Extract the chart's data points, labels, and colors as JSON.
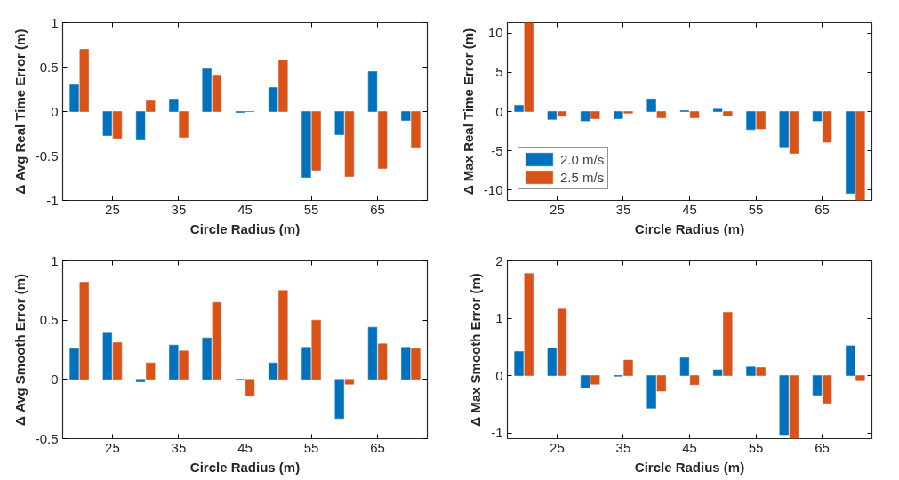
{
  "chart_data": [
    {
      "type": "bar",
      "ylabel": "Δ Avg Real Time Error (m)",
      "xlabel": "Circle Radius (m)",
      "x": [
        20,
        25,
        30,
        35,
        40,
        45,
        50,
        55,
        60,
        65,
        70
      ],
      "xlim": [
        17.5,
        72.5
      ],
      "xticks": [
        25,
        35,
        45,
        55,
        65
      ],
      "ylim": [
        -1,
        1
      ],
      "yticks": [
        -1,
        -0.5,
        0,
        0.5,
        1
      ],
      "grid": false,
      "legend": false,
      "series": [
        {
          "color": "#0072bd",
          "values": [
            0.3,
            -0.27,
            -0.31,
            0.14,
            0.48,
            -0.01,
            0.27,
            -0.74,
            -0.26,
            0.45,
            -0.1
          ]
        },
        {
          "color": "#d95319",
          "values": [
            0.7,
            -0.3,
            0.12,
            -0.29,
            0.41,
            0.0,
            0.58,
            -0.66,
            -0.73,
            -0.64,
            -0.4
          ]
        }
      ]
    },
    {
      "type": "bar",
      "ylabel": "Δ Max Real Time Error (m)",
      "xlabel": "Circle Radius (m)",
      "x": [
        20,
        25,
        30,
        35,
        40,
        45,
        50,
        55,
        60,
        65,
        70
      ],
      "xlim": [
        17.5,
        72.5
      ],
      "xticks": [
        25,
        35,
        45,
        55,
        65
      ],
      "ylim": [
        -11.3,
        11.3
      ],
      "yticks": [
        -10,
        -5,
        0,
        5,
        10
      ],
      "grid": false,
      "legend": "bottom left",
      "series": [
        {
          "name": "2.0 m/s",
          "color": "#0072bd",
          "values": [
            0.8,
            -1.0,
            -1.2,
            -0.9,
            1.6,
            0.1,
            0.3,
            -2.3,
            -4.5,
            -1.2,
            -10.4
          ]
        },
        {
          "name": "2.5 m/s",
          "color": "#d95319",
          "values": [
            11.3,
            -0.6,
            -0.9,
            -0.2,
            -0.8,
            -0.8,
            -0.5,
            -2.2,
            -5.3,
            -3.9,
            -11.3
          ]
        }
      ]
    },
    {
      "type": "bar",
      "ylabel": "Δ Avg Smooth Error (m)",
      "xlabel": "Circle Radius (m)",
      "x": [
        20,
        25,
        30,
        35,
        40,
        45,
        50,
        55,
        60,
        65,
        70
      ],
      "xlim": [
        17.5,
        72.5
      ],
      "xticks": [
        25,
        35,
        45,
        55,
        65
      ],
      "ylim": [
        -0.5,
        1
      ],
      "yticks": [
        -0.5,
        0,
        0.5,
        1
      ],
      "grid": false,
      "legend": false,
      "series": [
        {
          "color": "#0072bd",
          "values": [
            0.26,
            0.39,
            -0.02,
            0.29,
            0.35,
            0.0,
            0.14,
            0.27,
            -0.33,
            0.44,
            0.27
          ]
        },
        {
          "color": "#d95319",
          "values": [
            0.82,
            0.31,
            0.14,
            0.24,
            0.65,
            -0.14,
            0.75,
            0.5,
            -0.04,
            0.3,
            0.26
          ]
        }
      ]
    },
    {
      "type": "bar",
      "ylabel": "Δ Max Smooth Error (m)",
      "xlabel": "Circle Radius (m)",
      "x": [
        20,
        25,
        30,
        35,
        40,
        45,
        50,
        55,
        60,
        65,
        70
      ],
      "xlim": [
        17.5,
        72.5
      ],
      "xticks": [
        25,
        35,
        45,
        55,
        65
      ],
      "ylim": [
        -1.1,
        2
      ],
      "yticks": [
        -1,
        0,
        1,
        2
      ],
      "grid": false,
      "legend": false,
      "series": [
        {
          "color": "#0072bd",
          "values": [
            0.42,
            0.48,
            -0.21,
            -0.01,
            -0.57,
            0.31,
            0.1,
            0.15,
            -1.03,
            -0.34,
            0.52
          ]
        },
        {
          "color": "#d95319",
          "values": [
            1.78,
            1.16,
            -0.15,
            0.27,
            -0.27,
            -0.16,
            1.1,
            0.14,
            -1.1,
            -0.48,
            -0.09
          ]
        }
      ]
    }
  ]
}
